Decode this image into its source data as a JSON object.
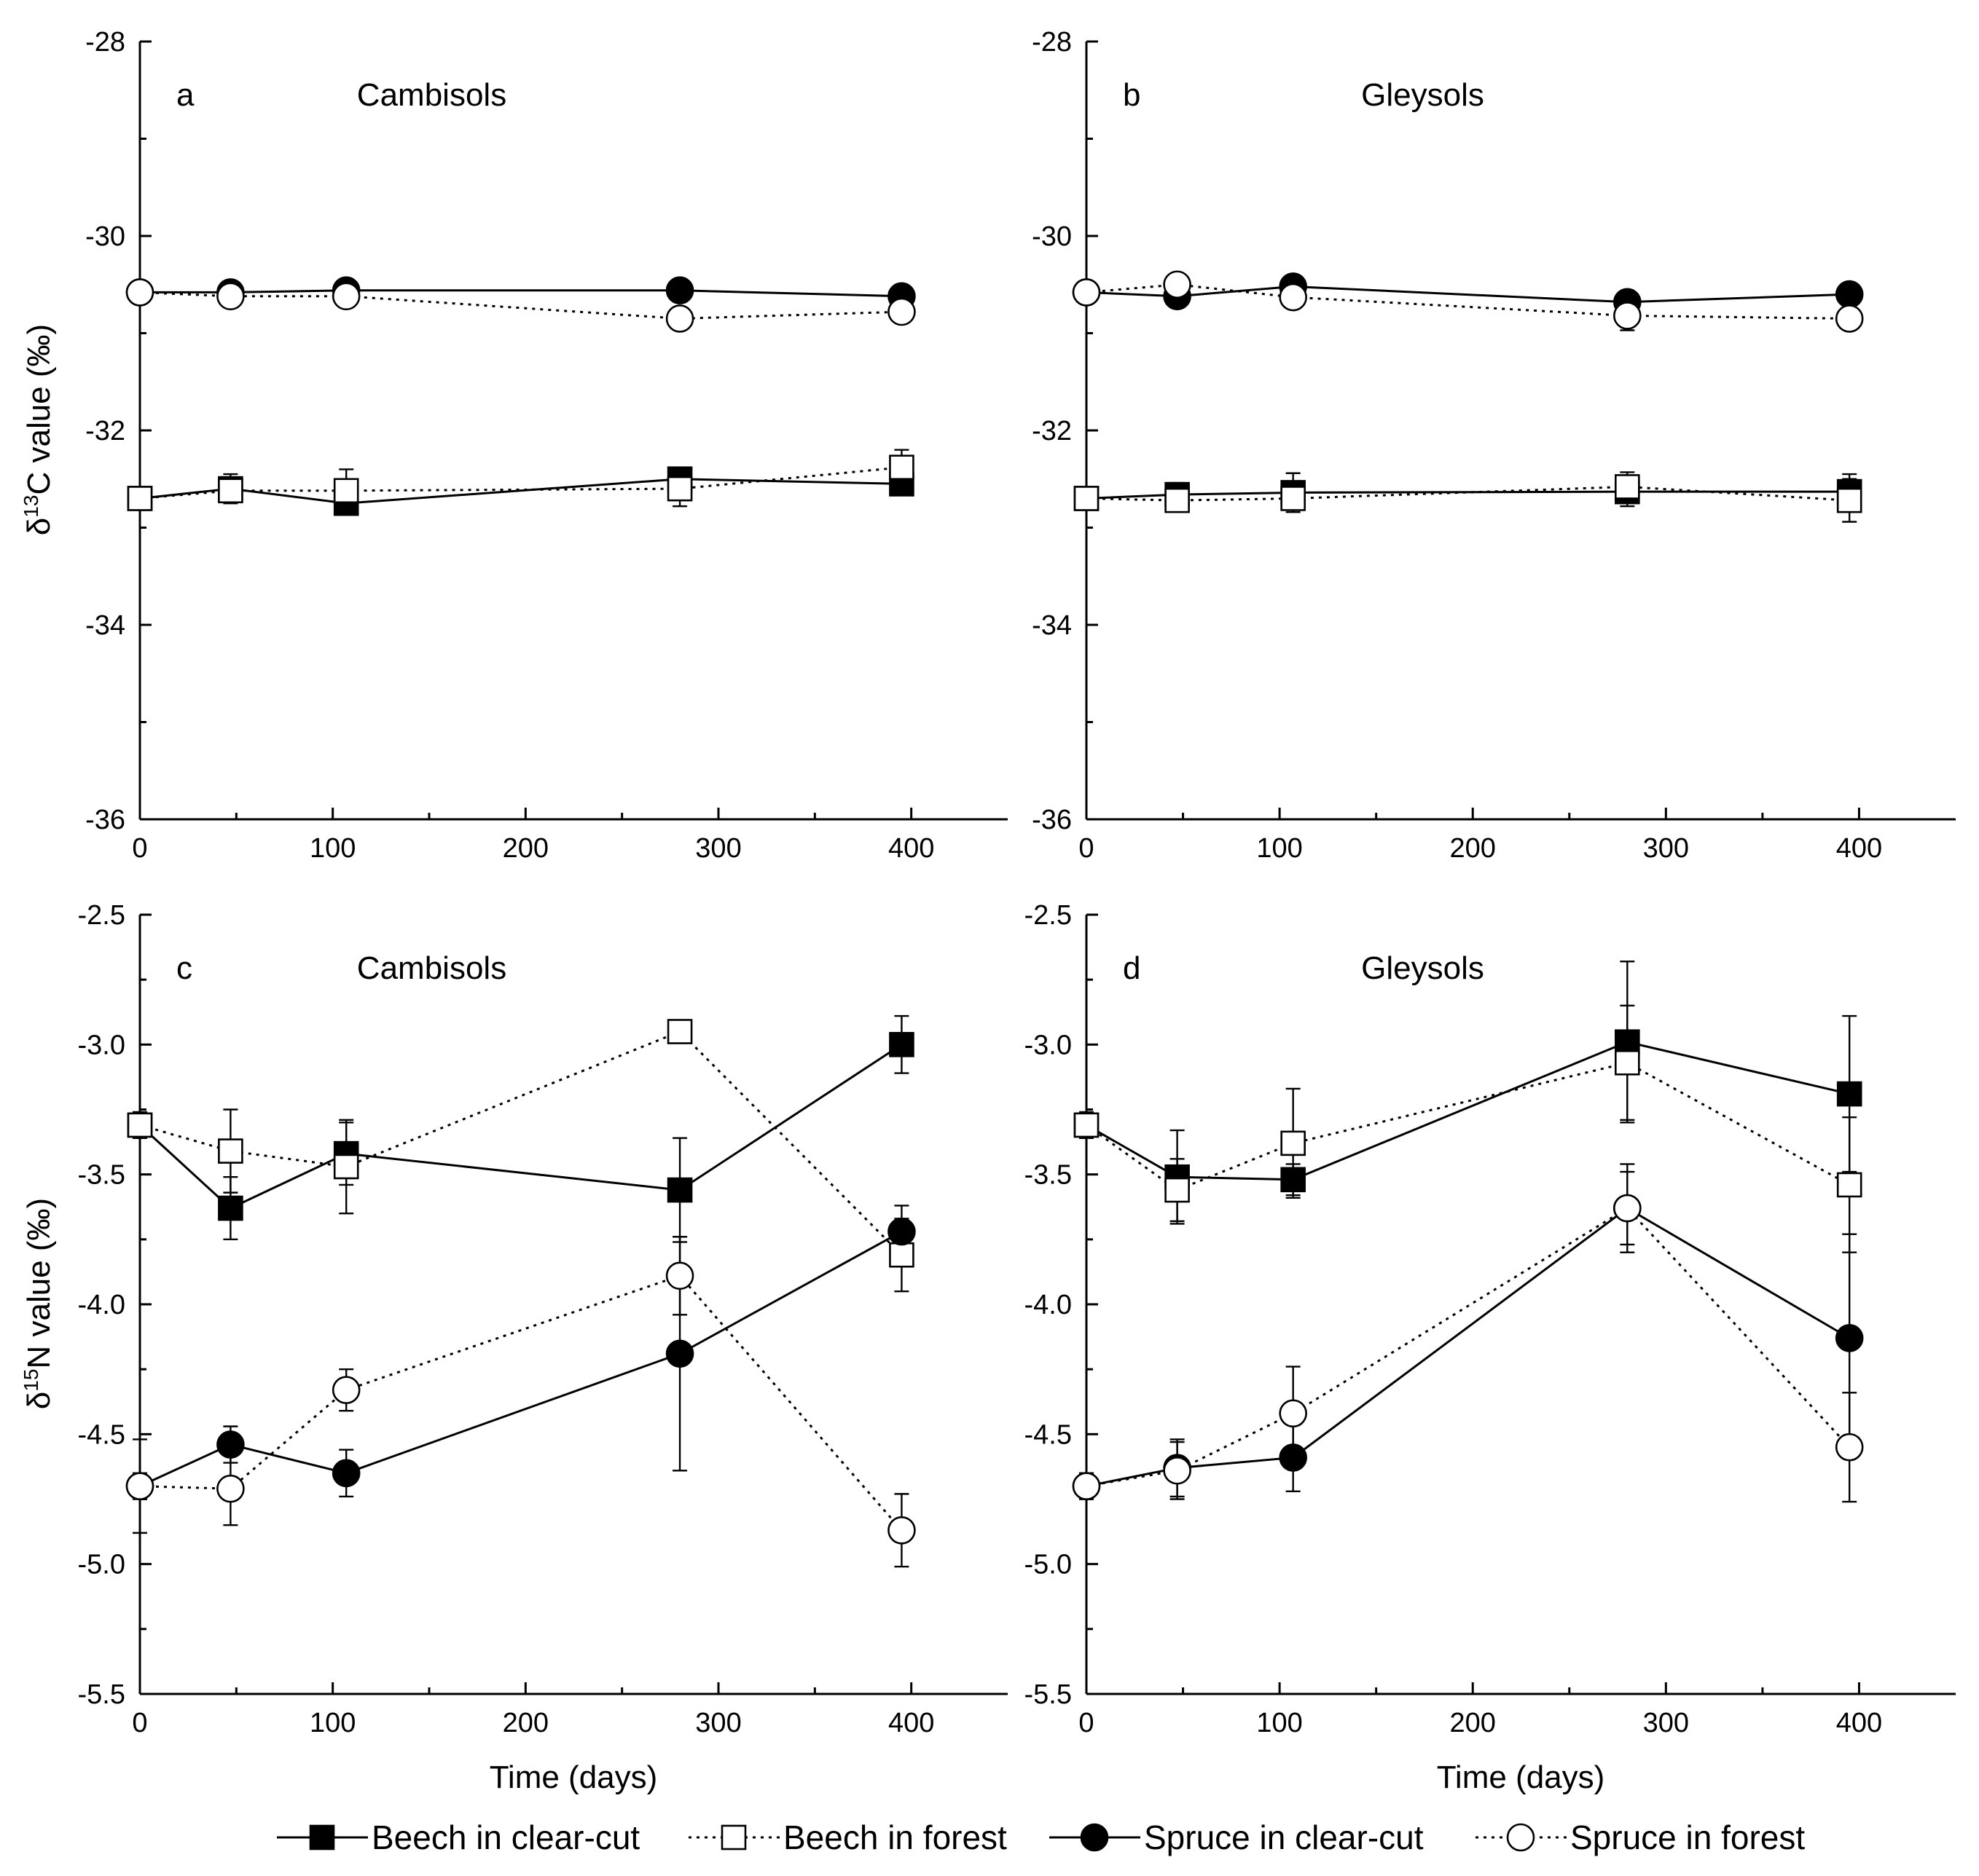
{
  "legend": [
    {
      "name": "Beech in clear-cut",
      "marker": "square",
      "filled": true,
      "dashed": false
    },
    {
      "name": "Beech in forest",
      "marker": "square",
      "filled": false,
      "dashed": true
    },
    {
      "name": "Spruce in clear-cut",
      "marker": "circle",
      "filled": true,
      "dashed": false
    },
    {
      "name": "Spruce in forest",
      "marker": "circle",
      "filled": false,
      "dashed": true
    }
  ],
  "chart_data": [
    {
      "type": "line",
      "panel": "a",
      "title": "Cambisols",
      "xlabel": "",
      "ylabel": "δ13C value (‰)",
      "xlim": [
        0,
        450
      ],
      "ylim": [
        -36,
        -28
      ],
      "xticks": [
        0,
        100,
        200,
        300,
        400
      ],
      "yticks": [
        -36,
        -34,
        -32,
        -30,
        -28
      ],
      "x": [
        0,
        47,
        107,
        280,
        395
      ],
      "series": [
        {
          "name": "Beech in clear-cut",
          "values": [
            -32.7,
            -32.6,
            -32.75,
            -32.5,
            -32.55
          ],
          "errors": [
            0.03,
            0.15,
            0.05,
            0.08,
            0.1
          ]
        },
        {
          "name": "Beech in forest",
          "values": [
            -32.7,
            -32.62,
            -32.62,
            -32.6,
            -32.38
          ],
          "errors": [
            0.03,
            0.12,
            0.22,
            0.18,
            0.18
          ]
        },
        {
          "name": "Spruce in clear-cut",
          "values": [
            -30.58,
            -30.58,
            -30.56,
            -30.56,
            -30.62
          ],
          "errors": [
            0.02,
            0.05,
            0.05,
            0.05,
            0.05
          ]
        },
        {
          "name": "Spruce in forest",
          "values": [
            -30.58,
            -30.62,
            -30.62,
            -30.85,
            -30.78
          ],
          "errors": [
            0.02,
            0.06,
            0.08,
            0.1,
            0.05
          ]
        }
      ]
    },
    {
      "type": "line",
      "panel": "b",
      "title": "Gleysols",
      "xlabel": "",
      "ylabel": "",
      "xlim": [
        0,
        450
      ],
      "ylim": [
        -36,
        -28
      ],
      "xticks": [
        0,
        100,
        200,
        300,
        400
      ],
      "yticks": [
        -36,
        -34,
        -32,
        -30,
        -28
      ],
      "x": [
        0,
        47,
        107,
        280,
        395
      ],
      "series": [
        {
          "name": "Beech in clear-cut",
          "values": [
            -32.7,
            -32.66,
            -32.64,
            -32.63,
            -32.63
          ],
          "errors": [
            0.03,
            0.12,
            0.2,
            0.15,
            0.18
          ]
        },
        {
          "name": "Beech in forest",
          "values": [
            -32.7,
            -32.72,
            -32.7,
            -32.58,
            -32.72
          ],
          "errors": [
            0.03,
            0.1,
            0.1,
            0.15,
            0.22
          ]
        },
        {
          "name": "Spruce in clear-cut",
          "values": [
            -30.58,
            -30.62,
            -30.52,
            -30.68,
            -30.6
          ],
          "errors": [
            0.02,
            0.05,
            0.06,
            0.05,
            0.1
          ]
        },
        {
          "name": "Spruce in forest",
          "values": [
            -30.58,
            -30.5,
            -30.63,
            -30.82,
            -30.85
          ],
          "errors": [
            0.02,
            0.06,
            0.06,
            0.15,
            0.05
          ]
        }
      ]
    },
    {
      "type": "line",
      "panel": "c",
      "title": "Cambisols",
      "xlabel": "Time (days)",
      "ylabel": "δ15N value (‰)",
      "xlim": [
        0,
        450
      ],
      "ylim": [
        -5.5,
        -2.5
      ],
      "xticks": [
        0,
        100,
        200,
        300,
        400
      ],
      "yticks": [
        -5.5,
        -5.0,
        -4.5,
        -4.0,
        -3.5,
        -3.0,
        -2.5
      ],
      "x": [
        0,
        47,
        107,
        280,
        395
      ],
      "series": [
        {
          "name": "Beech in clear-cut",
          "values": [
            -3.31,
            -3.63,
            -3.42,
            -3.56,
            -3.0
          ],
          "errors": [
            0.05,
            0.12,
            0.12,
            0.2,
            0.11
          ]
        },
        {
          "name": "Beech in forest",
          "values": [
            -3.31,
            -3.41,
            -3.47,
            -2.95,
            -3.81
          ],
          "errors": [
            0.05,
            0.16,
            0.18,
            0.03,
            0.14
          ]
        },
        {
          "name": "Spruce in clear-cut",
          "values": [
            -4.7,
            -4.54,
            -4.65,
            -4.19,
            -3.72
          ],
          "errors": [
            0.05,
            0.07,
            0.09,
            0.45,
            0.1
          ]
        },
        {
          "name": "Spruce in forest",
          "values": [
            -4.7,
            -4.71,
            -4.33,
            -3.89,
            -4.87
          ],
          "errors": [
            0.18,
            0.14,
            0.08,
            0.15,
            0.14
          ]
        }
      ]
    },
    {
      "type": "line",
      "panel": "d",
      "title": "Gleysols",
      "xlabel": "Time (days)",
      "ylabel": "",
      "xlim": [
        0,
        450
      ],
      "ylim": [
        -5.5,
        -2.5
      ],
      "xticks": [
        0,
        100,
        200,
        300,
        400
      ],
      "yticks": [
        -5.5,
        -5.0,
        -4.5,
        -4.0,
        -3.5,
        -3.0,
        -2.5
      ],
      "x": [
        0,
        47,
        107,
        280,
        395
      ],
      "series": [
        {
          "name": "Beech in clear-cut",
          "values": [
            -3.31,
            -3.51,
            -3.52,
            -2.99,
            -3.19
          ],
          "errors": [
            0.05,
            0.18,
            0.06,
            0.31,
            0.3
          ]
        },
        {
          "name": "Beech in forest",
          "values": [
            -3.31,
            -3.56,
            -3.38,
            -3.07,
            -3.54
          ],
          "errors": [
            0.05,
            0.12,
            0.21,
            0.22,
            0.26
          ]
        },
        {
          "name": "Spruce in clear-cut",
          "values": [
            -4.7,
            -4.63,
            -4.59,
            -3.63,
            -4.13
          ],
          "errors": [
            0.05,
            0.11,
            0.13,
            0.17,
            0.4
          ]
        },
        {
          "name": "Spruce in forest",
          "values": [
            -4.7,
            -4.64,
            -4.42,
            -3.63,
            -4.55
          ],
          "errors": [
            0.05,
            0.11,
            0.18,
            0.14,
            0.21
          ]
        }
      ]
    }
  ]
}
